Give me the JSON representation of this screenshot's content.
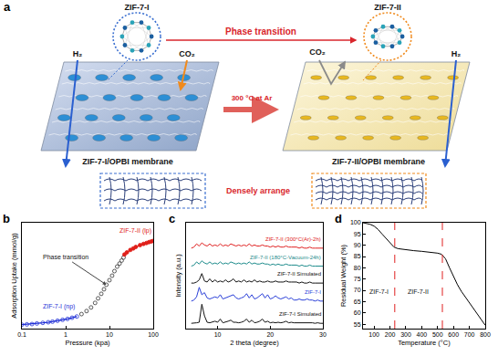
{
  "diagram": {
    "panel": "a",
    "left": {
      "cage": "ZIF-7-I",
      "membrane": "ZIF-7-I/OPBI membrane",
      "gases": [
        "H₂",
        "CO₂"
      ]
    },
    "right": {
      "cage": "ZIF-7-II",
      "membrane": "ZIF-7-II/OPBI membrane",
      "gases": [
        "CO₂",
        "H₂"
      ]
    },
    "transition": "Phase transition",
    "condition": "300 °C at Ar",
    "packing": "Densely arrange"
  },
  "chart_data": [
    {
      "panel": "b",
      "type": "scatter",
      "x_label": "Pressure (kpa)",
      "y_label": "Adsorption Uptake (mmol/g)",
      "log": "x",
      "xlim": [
        0.1,
        100
      ],
      "xticks": [
        0.1,
        1,
        10,
        100
      ],
      "ylim": [
        -0.1,
        3.4
      ],
      "yticks": [],
      "tick_labels": "x",
      "grid": false,
      "annotations": [
        "Phase transition"
      ],
      "series": [
        {
          "name": "ZIF-7-I (np)",
          "color": "#1f2fd6",
          "marker": "open-circle",
          "line_style": "solid",
          "x": [
            0.1,
            0.13,
            0.17,
            0.22,
            0.3,
            0.4,
            0.5,
            0.65,
            0.85,
            1.1,
            1.4,
            1.8
          ],
          "values": [
            0.03,
            0.04,
            0.05,
            0.07,
            0.09,
            0.11,
            0.13,
            0.16,
            0.19,
            0.22,
            0.26,
            0.3
          ]
        },
        {
          "color": "#333333",
          "marker": "open-circle",
          "x": [
            2.3,
            3,
            3.8,
            4.7,
            5.5,
            6.5,
            7.5,
            8.5,
            10,
            11.5,
            13,
            15,
            17,
            19,
            21
          ],
          "values": [
            0.38,
            0.48,
            0.6,
            0.75,
            0.9,
            1.05,
            1.2,
            1.35,
            1.5,
            1.65,
            1.8,
            1.95,
            2.05,
            2.15,
            2.25
          ]
        },
        {
          "name": "ZIF-7-II (lp)",
          "color": "#e0201a",
          "marker": "circle",
          "line_style": "solid",
          "x": [
            22,
            25,
            30,
            35,
            40,
            50,
            60,
            70,
            80,
            90,
            100
          ],
          "values": [
            2.35,
            2.42,
            2.5,
            2.55,
            2.6,
            2.66,
            2.7,
            2.73,
            2.76,
            2.78,
            2.8
          ]
        }
      ]
    },
    {
      "panel": "c",
      "type": "line",
      "x_label": "2 theta (degree)",
      "y_label": "Intensity (a.u.)",
      "xlim": [
        4,
        30
      ],
      "xticks": [
        10,
        20,
        30
      ],
      "ylim": [
        0,
        10
      ],
      "yticks": [],
      "tick_labels": "x",
      "grid": false,
      "x": [
        5,
        5.5,
        6,
        6.5,
        7,
        7.5,
        8,
        8.5,
        9,
        9.5,
        10,
        10.5,
        11,
        11.5,
        12,
        12.5,
        13,
        13.5,
        14,
        14.5,
        15,
        15.5,
        16,
        16.5,
        17,
        17.5,
        18,
        18.5,
        19,
        19.5,
        20,
        20.5,
        21,
        21.5,
        22,
        22.5,
        23,
        23.5,
        24,
        24.5,
        25,
        25.5,
        26,
        26.5,
        27,
        27.5,
        28,
        28.5,
        29,
        29.5,
        30
      ],
      "series": [
        {
          "name": "ZIF-7-I Simulated",
          "color": "#111111",
          "line_style": "solid",
          "values": [
            0.5,
            0.5,
            0.55,
            0.6,
            2.3,
            1.2,
            0.6,
            0.55,
            0.6,
            0.7,
            0.6,
            0.9,
            0.55,
            0.6,
            0.7,
            0.8,
            0.6,
            0.6,
            0.55,
            0.6,
            0.7,
            0.9,
            0.6,
            0.8,
            0.55,
            0.6,
            0.7,
            0.9,
            0.6,
            0.7,
            0.55,
            0.6,
            0.55,
            0.6,
            0.55,
            0.6,
            0.7,
            0.55,
            0.6,
            0.55,
            0.55,
            0.6,
            0.55,
            0.55,
            0.6,
            0.55,
            0.55,
            0.5,
            0.55,
            0.5,
            0.5
          ]
        },
        {
          "name": "ZIF-7-I",
          "color": "#2a3fd8",
          "line_style": "solid",
          "values": [
            2.6,
            2.7,
            3.0,
            3.9,
            3.2,
            3.4,
            2.9,
            2.8,
            2.9,
            3.0,
            2.9,
            3.2,
            2.8,
            2.9,
            3.0,
            3.1,
            3.2,
            2.9,
            2.8,
            2.9,
            3.0,
            3.3,
            2.9,
            3.2,
            2.8,
            2.9,
            3.1,
            3.3,
            2.9,
            3.2,
            2.8,
            2.9,
            3.1,
            2.9,
            2.8,
            2.9,
            3.0,
            2.8,
            2.9,
            2.7,
            2.7,
            2.8,
            2.7,
            2.7,
            2.8,
            2.7,
            2.7,
            2.6,
            2.7,
            2.6,
            2.6
          ]
        },
        {
          "name": "ZIF-7-II Simulated",
          "color": "#111111",
          "line_style": "solid",
          "values": [
            4.3,
            4.3,
            4.4,
            4.6,
            5.2,
            4.5,
            4.4,
            4.7,
            4.4,
            4.6,
            4.4,
            4.5,
            4.4,
            4.6,
            4.4,
            4.5,
            4.7,
            4.4,
            4.5,
            4.4,
            4.6,
            4.4,
            4.5,
            4.4,
            4.6,
            4.4,
            4.5,
            4.4,
            4.4,
            4.5,
            4.4,
            4.4,
            4.5,
            4.4,
            4.4,
            4.4,
            4.5,
            4.4,
            4.4,
            4.4,
            4.4,
            4.3,
            4.4,
            4.3,
            4.3,
            4.4,
            4.3,
            4.3,
            4.3,
            4.3,
            4.3
          ]
        },
        {
          "name": "ZIF-7-II (180°C-Vacuum-24h)",
          "color": "#1a8a8a",
          "line_style": "solid",
          "values": [
            5.9,
            6.0,
            6.3,
            6.1,
            6.4,
            6.2,
            6.1,
            6.3,
            6.1,
            6.2,
            6.1,
            6.3,
            6.1,
            6.2,
            6.1,
            6.3,
            6.2,
            6.1,
            6.2,
            6.1,
            6.2,
            6.1,
            6.3,
            6.1,
            6.2,
            6.1,
            6.1,
            6.2,
            6.1,
            6.1,
            6.0,
            6.1,
            6.0,
            6.1,
            6.0,
            6.0,
            6.1,
            6.0,
            6.0,
            6.0,
            6.0,
            5.9,
            6.0,
            5.9,
            5.9,
            6.0,
            5.9,
            5.9,
            5.9,
            5.9,
            5.9
          ]
        },
        {
          "name": "ZIF-7-II (300°C(Ar)-2h)",
          "color": "#e02020",
          "line_style": "solid",
          "values": [
            7.6,
            7.7,
            8.0,
            7.8,
            8.1,
            7.9,
            7.8,
            8.0,
            7.8,
            7.9,
            7.8,
            8.0,
            7.8,
            7.9,
            7.8,
            8.0,
            7.9,
            7.8,
            7.9,
            7.8,
            7.9,
            7.8,
            8.0,
            7.8,
            7.9,
            7.8,
            7.8,
            7.9,
            7.8,
            7.8,
            7.7,
            7.8,
            7.7,
            7.8,
            7.7,
            7.7,
            7.8,
            7.7,
            7.7,
            7.7,
            7.7,
            7.6,
            7.7,
            7.6,
            7.6,
            7.7,
            7.6,
            7.6,
            7.6,
            7.6,
            7.6
          ]
        }
      ]
    },
    {
      "panel": "d",
      "type": "line",
      "x_label": "Temperature (°C)",
      "y_label": "Residual Weight (%)",
      "xlim": [
        30,
        800
      ],
      "xticks": [
        100,
        200,
        300,
        400,
        500,
        600,
        700,
        800
      ],
      "ylim": [
        53,
        100
      ],
      "yticks": [
        55,
        60,
        65,
        70,
        75,
        80,
        85,
        90,
        95,
        100
      ],
      "grid": false,
      "phase_boundaries": [
        230,
        530
      ],
      "boundary_color": "#e02020",
      "region_labels": [
        "ZIF-7-I",
        "ZIF-7-II"
      ],
      "series": [
        {
          "color": "#000000",
          "line_style": "solid",
          "x": [
            30,
            50,
            75,
            100,
            125,
            150,
            175,
            200,
            225,
            250,
            300,
            350,
            400,
            450,
            500,
            525,
            550,
            575,
            600,
            625,
            650,
            675,
            700,
            725,
            750,
            775,
            800
          ],
          "values": [
            100,
            99.8,
            99.3,
            98.5,
            97,
            95,
            93,
            91,
            89.2,
            88.5,
            88,
            87.6,
            87.3,
            87,
            86.5,
            86,
            84,
            80,
            76,
            72.5,
            69.5,
            67,
            64.5,
            62,
            59.5,
            57,
            54.5
          ]
        }
      ]
    }
  ]
}
